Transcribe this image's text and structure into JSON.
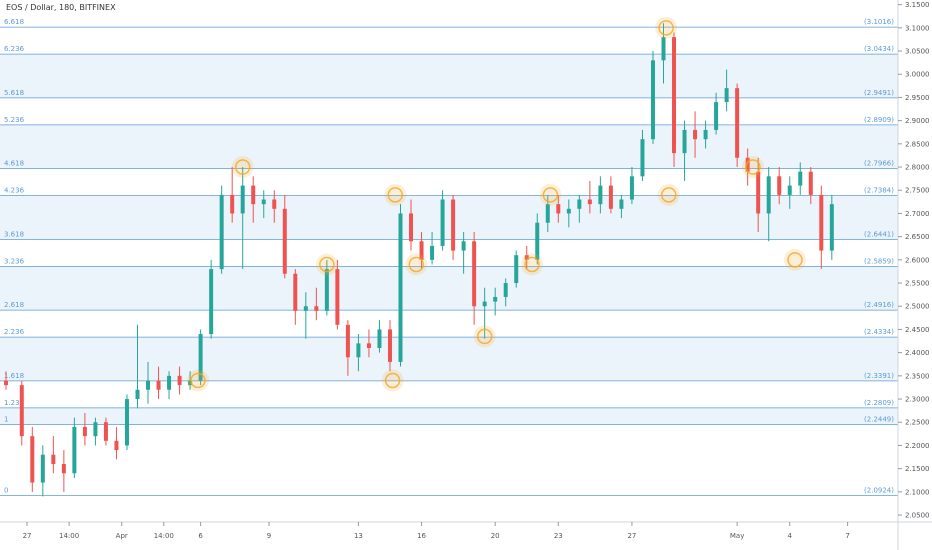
{
  "header": {
    "title": "EOS / Dollar, 180, BITFINEX"
  },
  "colors": {
    "up": "#26a69a",
    "down": "#ef5350",
    "fib_line": "#5b9bd5",
    "fib_text": "#5b9bd5",
    "band": "#dcebf8",
    "circle": "#f5a623",
    "axis": "#555555"
  },
  "chart_data": {
    "type": "candlestick",
    "title": "EOS / Dollar, 180, BITFINEX",
    "ylim": [
      2.035,
      3.16
    ],
    "y_ticks": [
      "2.0500",
      "2.1000",
      "2.1500",
      "2.2000",
      "2.2500",
      "2.3000",
      "2.3500",
      "2.4000",
      "2.4500",
      "2.5000",
      "2.5500",
      "2.6000",
      "2.6500",
      "2.7000",
      "2.7500",
      "2.8000",
      "2.8500",
      "2.9000",
      "2.9500",
      "3.0000",
      "3.0500",
      "3.1000",
      "3.1500"
    ],
    "y_tick_values": [
      2.05,
      2.1,
      2.15,
      2.2,
      2.25,
      2.3,
      2.35,
      2.4,
      2.45,
      2.5,
      2.55,
      2.6,
      2.65,
      2.7,
      2.75,
      2.8,
      2.85,
      2.9,
      2.95,
      3.0,
      3.05,
      3.1,
      3.15
    ],
    "x_ticks": [
      {
        "label": "27",
        "t": 0.04
      },
      {
        "label": "14:00",
        "t": 0.12
      },
      {
        "label": "Apr",
        "t": 0.22
      },
      {
        "label": "14:00",
        "t": 0.3
      },
      {
        "label": "6",
        "t": 0.37
      },
      {
        "label": "9",
        "t": 0.5
      },
      {
        "label": "13",
        "t": 0.67
      },
      {
        "label": "16",
        "t": 0.79
      },
      {
        "label": "20",
        "t": 0.93
      },
      {
        "label": "23",
        "t": 1.05
      },
      {
        "label": "27",
        "t": 1.19
      },
      {
        "label": "May",
        "t": 1.39
      },
      {
        "label": "4",
        "t": 1.49
      },
      {
        "label": "7",
        "t": 1.6
      }
    ],
    "fib_levels": [
      {
        "ratio": "0",
        "price": "(2.0924)",
        "value": 2.0924
      },
      {
        "ratio": "1",
        "price": "(2.2449)",
        "value": 2.2449
      },
      {
        "ratio": "1.236",
        "price": "(2.2809)",
        "value": 2.2809
      },
      {
        "ratio": "1.618",
        "price": "(2.3391)",
        "value": 2.3391
      },
      {
        "ratio": "2.236",
        "price": "(2.4334)",
        "value": 2.4334
      },
      {
        "ratio": "2.618",
        "price": "(2.4916)",
        "value": 2.4916
      },
      {
        "ratio": "3.236",
        "price": "(2.5859)",
        "value": 2.5859
      },
      {
        "ratio": "3.618",
        "price": "(2.6441)",
        "value": 2.6441
      },
      {
        "ratio": "4.236",
        "price": "(2.7384)",
        "value": 2.7384
      },
      {
        "ratio": "4.618",
        "price": "(2.7966)",
        "value": 2.7966
      },
      {
        "ratio": "5.236",
        "price": "(2.8909)",
        "value": 2.8909
      },
      {
        "ratio": "5.618",
        "price": "(2.9491)",
        "value": 2.9491
      },
      {
        "ratio": "6.236",
        "price": "(3.0434)",
        "value": 3.0434
      },
      {
        "ratio": "6.618",
        "price": "(3.1016)",
        "value": 3.1016
      }
    ],
    "circle_markers": [
      {
        "t": 0.365,
        "v": 2.34
      },
      {
        "t": 0.45,
        "v": 2.8
      },
      {
        "t": 0.61,
        "v": 2.59
      },
      {
        "t": 0.735,
        "v": 2.34
      },
      {
        "t": 0.74,
        "v": 2.74
      },
      {
        "t": 0.78,
        "v": 2.59
      },
      {
        "t": 0.91,
        "v": 2.435
      },
      {
        "t": 1.0,
        "v": 2.59
      },
      {
        "t": 1.035,
        "v": 2.74
      },
      {
        "t": 1.255,
        "v": 3.1
      },
      {
        "t": 1.26,
        "v": 2.74
      },
      {
        "t": 1.42,
        "v": 2.8
      },
      {
        "t": 1.5,
        "v": 2.6
      }
    ],
    "series": [
      {
        "name": "EOS/USD",
        "ohlc": [
          {
            "t": 0.0,
            "o": 2.34,
            "h": 2.36,
            "l": 2.32,
            "c": 2.33
          },
          {
            "t": 0.03,
            "o": 2.33,
            "h": 2.34,
            "l": 2.2,
            "c": 2.22
          },
          {
            "t": 0.05,
            "o": 2.22,
            "h": 2.24,
            "l": 2.1,
            "c": 2.12
          },
          {
            "t": 0.07,
            "o": 2.12,
            "h": 2.2,
            "l": 2.09,
            "c": 2.18
          },
          {
            "t": 0.09,
            "o": 2.18,
            "h": 2.22,
            "l": 2.14,
            "c": 2.16
          },
          {
            "t": 0.11,
            "o": 2.16,
            "h": 2.19,
            "l": 2.1,
            "c": 2.14
          },
          {
            "t": 0.13,
            "o": 2.14,
            "h": 2.26,
            "l": 2.13,
            "c": 2.24
          },
          {
            "t": 0.15,
            "o": 2.24,
            "h": 2.27,
            "l": 2.2,
            "c": 2.22
          },
          {
            "t": 0.17,
            "o": 2.22,
            "h": 2.26,
            "l": 2.2,
            "c": 2.25
          },
          {
            "t": 0.19,
            "o": 2.25,
            "h": 2.26,
            "l": 2.2,
            "c": 2.21
          },
          {
            "t": 0.21,
            "o": 2.21,
            "h": 2.24,
            "l": 2.17,
            "c": 2.19
          },
          {
            "t": 0.23,
            "o": 2.2,
            "h": 2.31,
            "l": 2.19,
            "c": 2.3
          },
          {
            "t": 0.25,
            "o": 2.3,
            "h": 2.46,
            "l": 2.28,
            "c": 2.32
          },
          {
            "t": 0.27,
            "o": 2.32,
            "h": 2.38,
            "l": 2.29,
            "c": 2.34
          },
          {
            "t": 0.29,
            "o": 2.34,
            "h": 2.37,
            "l": 2.3,
            "c": 2.32
          },
          {
            "t": 0.31,
            "o": 2.32,
            "h": 2.36,
            "l": 2.3,
            "c": 2.35
          },
          {
            "t": 0.33,
            "o": 2.35,
            "h": 2.37,
            "l": 2.31,
            "c": 2.33
          },
          {
            "t": 0.35,
            "o": 2.33,
            "h": 2.36,
            "l": 2.32,
            "c": 2.34
          },
          {
            "t": 0.37,
            "o": 2.34,
            "h": 2.45,
            "l": 2.33,
            "c": 2.44
          },
          {
            "t": 0.39,
            "o": 2.44,
            "h": 2.6,
            "l": 2.43,
            "c": 2.58
          },
          {
            "t": 0.41,
            "o": 2.58,
            "h": 2.76,
            "l": 2.57,
            "c": 2.74
          },
          {
            "t": 0.43,
            "o": 2.74,
            "h": 2.8,
            "l": 2.68,
            "c": 2.7
          },
          {
            "t": 0.45,
            "o": 2.7,
            "h": 2.8,
            "l": 2.58,
            "c": 2.76
          },
          {
            "t": 0.47,
            "o": 2.76,
            "h": 2.78,
            "l": 2.68,
            "c": 2.72
          },
          {
            "t": 0.49,
            "o": 2.72,
            "h": 2.75,
            "l": 2.69,
            "c": 2.73
          },
          {
            "t": 0.51,
            "o": 2.73,
            "h": 2.75,
            "l": 2.68,
            "c": 2.71
          },
          {
            "t": 0.53,
            "o": 2.71,
            "h": 2.74,
            "l": 2.56,
            "c": 2.57
          },
          {
            "t": 0.55,
            "o": 2.57,
            "h": 2.58,
            "l": 2.46,
            "c": 2.49
          },
          {
            "t": 0.57,
            "o": 2.49,
            "h": 2.53,
            "l": 2.43,
            "c": 2.5
          },
          {
            "t": 0.59,
            "o": 2.5,
            "h": 2.54,
            "l": 2.47,
            "c": 2.49
          },
          {
            "t": 0.61,
            "o": 2.49,
            "h": 2.6,
            "l": 2.48,
            "c": 2.58
          },
          {
            "t": 0.63,
            "o": 2.58,
            "h": 2.6,
            "l": 2.45,
            "c": 2.46
          },
          {
            "t": 0.65,
            "o": 2.46,
            "h": 2.47,
            "l": 2.35,
            "c": 2.39
          },
          {
            "t": 0.67,
            "o": 2.39,
            "h": 2.44,
            "l": 2.36,
            "c": 2.42
          },
          {
            "t": 0.69,
            "o": 2.42,
            "h": 2.45,
            "l": 2.39,
            "c": 2.41
          },
          {
            "t": 0.71,
            "o": 2.41,
            "h": 2.47,
            "l": 2.4,
            "c": 2.45
          },
          {
            "t": 0.73,
            "o": 2.45,
            "h": 2.47,
            "l": 2.36,
            "c": 2.38
          },
          {
            "t": 0.75,
            "o": 2.38,
            "h": 2.72,
            "l": 2.37,
            "c": 2.7
          },
          {
            "t": 0.77,
            "o": 2.7,
            "h": 2.73,
            "l": 2.62,
            "c": 2.64
          },
          {
            "t": 0.79,
            "o": 2.64,
            "h": 2.66,
            "l": 2.58,
            "c": 2.6
          },
          {
            "t": 0.81,
            "o": 2.6,
            "h": 2.66,
            "l": 2.59,
            "c": 2.63
          },
          {
            "t": 0.83,
            "o": 2.63,
            "h": 2.75,
            "l": 2.62,
            "c": 2.73
          },
          {
            "t": 0.85,
            "o": 2.73,
            "h": 2.74,
            "l": 2.6,
            "c": 2.62
          },
          {
            "t": 0.87,
            "o": 2.62,
            "h": 2.66,
            "l": 2.57,
            "c": 2.64
          },
          {
            "t": 0.89,
            "o": 2.64,
            "h": 2.66,
            "l": 2.46,
            "c": 2.5
          },
          {
            "t": 0.91,
            "o": 2.5,
            "h": 2.54,
            "l": 2.43,
            "c": 2.51
          },
          {
            "t": 0.93,
            "o": 2.51,
            "h": 2.54,
            "l": 2.48,
            "c": 2.52
          },
          {
            "t": 0.95,
            "o": 2.52,
            "h": 2.56,
            "l": 2.5,
            "c": 2.55
          },
          {
            "t": 0.97,
            "o": 2.55,
            "h": 2.62,
            "l": 2.54,
            "c": 2.61
          },
          {
            "t": 0.99,
            "o": 2.61,
            "h": 2.63,
            "l": 2.58,
            "c": 2.6
          },
          {
            "t": 1.01,
            "o": 2.6,
            "h": 2.7,
            "l": 2.59,
            "c": 2.68
          },
          {
            "t": 1.03,
            "o": 2.68,
            "h": 2.74,
            "l": 2.66,
            "c": 2.72
          },
          {
            "t": 1.05,
            "o": 2.72,
            "h": 2.74,
            "l": 2.68,
            "c": 2.7
          },
          {
            "t": 1.07,
            "o": 2.7,
            "h": 2.73,
            "l": 2.67,
            "c": 2.71
          },
          {
            "t": 1.09,
            "o": 2.71,
            "h": 2.74,
            "l": 2.68,
            "c": 2.73
          },
          {
            "t": 1.11,
            "o": 2.73,
            "h": 2.77,
            "l": 2.7,
            "c": 2.72
          },
          {
            "t": 1.13,
            "o": 2.72,
            "h": 2.78,
            "l": 2.7,
            "c": 2.76
          },
          {
            "t": 1.15,
            "o": 2.76,
            "h": 2.78,
            "l": 2.7,
            "c": 2.71
          },
          {
            "t": 1.17,
            "o": 2.71,
            "h": 2.74,
            "l": 2.69,
            "c": 2.73
          },
          {
            "t": 1.19,
            "o": 2.73,
            "h": 2.8,
            "l": 2.72,
            "c": 2.78
          },
          {
            "t": 1.21,
            "o": 2.78,
            "h": 2.88,
            "l": 2.77,
            "c": 2.86
          },
          {
            "t": 1.23,
            "o": 2.86,
            "h": 3.05,
            "l": 2.85,
            "c": 3.03
          },
          {
            "t": 1.25,
            "o": 3.03,
            "h": 3.11,
            "l": 2.98,
            "c": 3.08
          },
          {
            "t": 1.27,
            "o": 3.08,
            "h": 3.09,
            "l": 2.8,
            "c": 2.83
          },
          {
            "t": 1.29,
            "o": 2.83,
            "h": 2.9,
            "l": 2.77,
            "c": 2.88
          },
          {
            "t": 1.31,
            "o": 2.88,
            "h": 2.92,
            "l": 2.82,
            "c": 2.86
          },
          {
            "t": 1.33,
            "o": 2.86,
            "h": 2.9,
            "l": 2.84,
            "c": 2.88
          },
          {
            "t": 1.35,
            "o": 2.88,
            "h": 2.96,
            "l": 2.87,
            "c": 2.94
          },
          {
            "t": 1.37,
            "o": 2.94,
            "h": 3.01,
            "l": 2.92,
            "c": 2.97
          },
          {
            "t": 1.39,
            "o": 2.97,
            "h": 2.98,
            "l": 2.8,
            "c": 2.82
          },
          {
            "t": 1.41,
            "o": 2.82,
            "h": 2.84,
            "l": 2.76,
            "c": 2.79
          },
          {
            "t": 1.43,
            "o": 2.79,
            "h": 2.82,
            "l": 2.66,
            "c": 2.7
          },
          {
            "t": 1.45,
            "o": 2.7,
            "h": 2.8,
            "l": 2.64,
            "c": 2.78
          },
          {
            "t": 1.47,
            "o": 2.78,
            "h": 2.8,
            "l": 2.72,
            "c": 2.74
          },
          {
            "t": 1.49,
            "o": 2.74,
            "h": 2.78,
            "l": 2.71,
            "c": 2.76
          },
          {
            "t": 1.51,
            "o": 2.76,
            "h": 2.81,
            "l": 2.74,
            "c": 2.79
          },
          {
            "t": 1.53,
            "o": 2.79,
            "h": 2.8,
            "l": 2.72,
            "c": 2.74
          },
          {
            "t": 1.55,
            "o": 2.74,
            "h": 2.76,
            "l": 2.58,
            "c": 2.62
          },
          {
            "t": 1.57,
            "o": 2.62,
            "h": 2.74,
            "l": 2.6,
            "c": 2.72
          }
        ]
      }
    ]
  }
}
